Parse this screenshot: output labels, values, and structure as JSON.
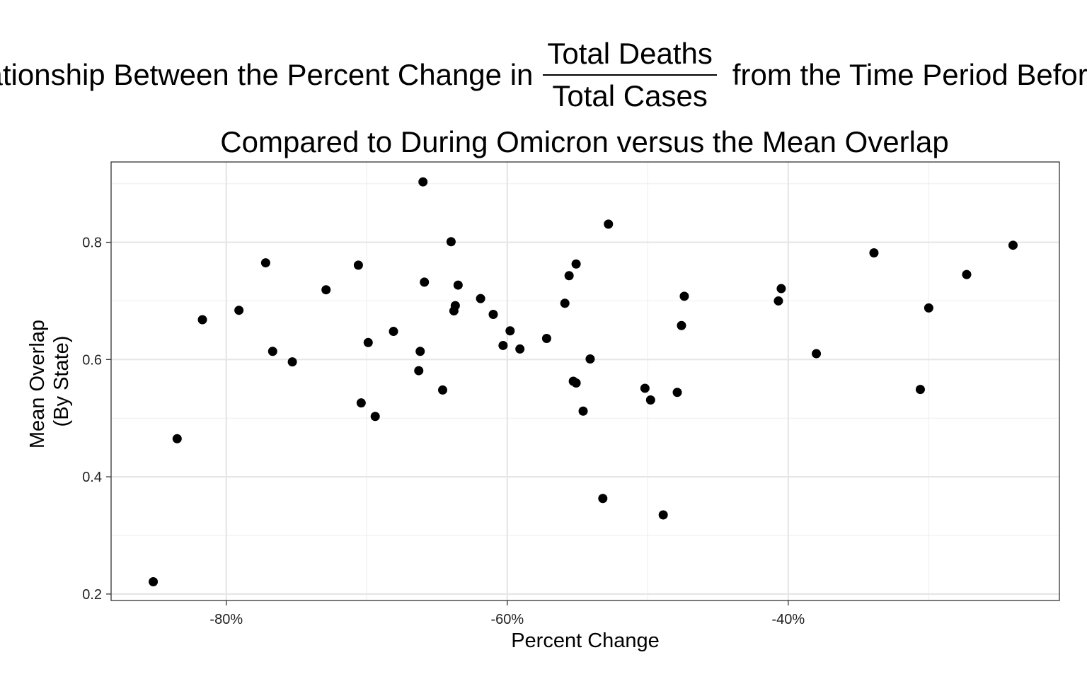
{
  "chart_data": {
    "type": "scatter",
    "title": {
      "prefix": "Relationship Between the Percent Change in",
      "numerator": "Total Deaths",
      "denominator": "Total Cases",
      "suffix": "from the Time Period Before",
      "line2": "Compared to During Omicron versus the Mean Overlap"
    },
    "xlabel": "Percent Change",
    "ylabel_lines": [
      "Mean Overlap",
      "(By State)"
    ],
    "xlim": [
      -88.2,
      -20.7
    ],
    "ylim": [
      0.189,
      0.937
    ],
    "x_ticks": [
      {
        "value": -80,
        "label": "-80%"
      },
      {
        "value": -60,
        "label": "-60%"
      },
      {
        "value": -40,
        "label": "-40%"
      }
    ],
    "y_ticks": [
      {
        "value": 0.2,
        "label": "0.2"
      },
      {
        "value": 0.4,
        "label": "0.4"
      },
      {
        "value": 0.6,
        "label": "0.6"
      },
      {
        "value": 0.8,
        "label": "0.8"
      }
    ],
    "grid": true,
    "point_color": "#000000",
    "points": [
      {
        "x": -85.2,
        "y": 0.221
      },
      {
        "x": -83.5,
        "y": 0.465
      },
      {
        "x": -81.7,
        "y": 0.668
      },
      {
        "x": -79.1,
        "y": 0.684
      },
      {
        "x": -77.2,
        "y": 0.765
      },
      {
        "x": -76.7,
        "y": 0.614
      },
      {
        "x": -75.3,
        "y": 0.596
      },
      {
        "x": -72.9,
        "y": 0.719
      },
      {
        "x": -70.6,
        "y": 0.761
      },
      {
        "x": -70.4,
        "y": 0.526
      },
      {
        "x": -69.9,
        "y": 0.629
      },
      {
        "x": -69.4,
        "y": 0.503
      },
      {
        "x": -68.1,
        "y": 0.648
      },
      {
        "x": -66.3,
        "y": 0.581
      },
      {
        "x": -66.2,
        "y": 0.614
      },
      {
        "x": -66.0,
        "y": 0.903
      },
      {
        "x": -65.9,
        "y": 0.732
      },
      {
        "x": -64.6,
        "y": 0.548
      },
      {
        "x": -64.0,
        "y": 0.801
      },
      {
        "x": -63.8,
        "y": 0.683
      },
      {
        "x": -63.7,
        "y": 0.692
      },
      {
        "x": -63.5,
        "y": 0.727
      },
      {
        "x": -61.9,
        "y": 0.704
      },
      {
        "x": -61.0,
        "y": 0.677
      },
      {
        "x": -60.3,
        "y": 0.624
      },
      {
        "x": -59.8,
        "y": 0.649
      },
      {
        "x": -59.1,
        "y": 0.618
      },
      {
        "x": -57.2,
        "y": 0.636
      },
      {
        "x": -55.9,
        "y": 0.696
      },
      {
        "x": -55.6,
        "y": 0.743
      },
      {
        "x": -55.3,
        "y": 0.563
      },
      {
        "x": -55.1,
        "y": 0.763
      },
      {
        "x": -55.1,
        "y": 0.56
      },
      {
        "x": -54.6,
        "y": 0.512
      },
      {
        "x": -54.1,
        "y": 0.601
      },
      {
        "x": -52.8,
        "y": 0.831
      },
      {
        "x": -53.2,
        "y": 0.363
      },
      {
        "x": -50.2,
        "y": 0.551
      },
      {
        "x": -49.8,
        "y": 0.531
      },
      {
        "x": -48.9,
        "y": 0.335
      },
      {
        "x": -47.9,
        "y": 0.544
      },
      {
        "x": -47.6,
        "y": 0.658
      },
      {
        "x": -47.4,
        "y": 0.708
      },
      {
        "x": -40.7,
        "y": 0.7
      },
      {
        "x": -40.5,
        "y": 0.721
      },
      {
        "x": -38.0,
        "y": 0.61
      },
      {
        "x": -33.9,
        "y": 0.782
      },
      {
        "x": -30.6,
        "y": 0.549
      },
      {
        "x": -30.0,
        "y": 0.688
      },
      {
        "x": -27.3,
        "y": 0.745
      },
      {
        "x": -24.0,
        "y": 0.795
      }
    ]
  }
}
